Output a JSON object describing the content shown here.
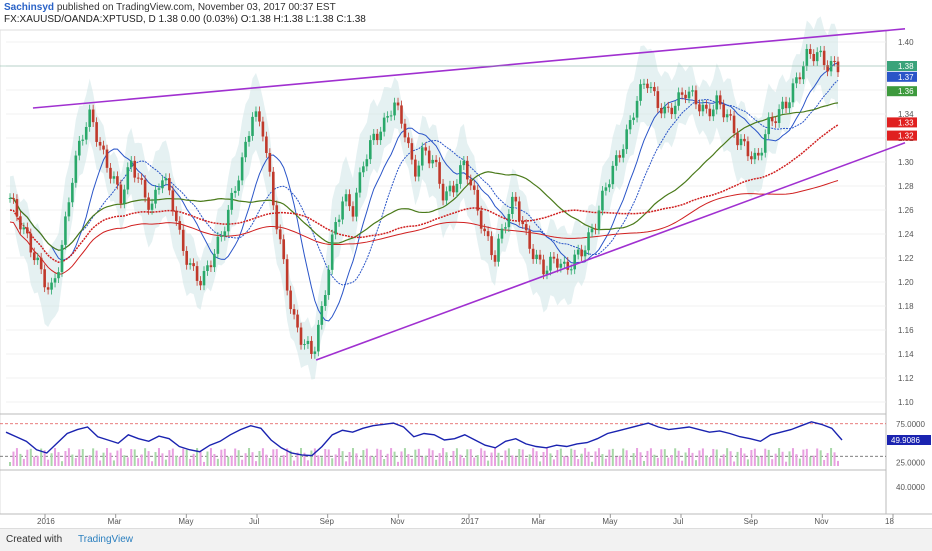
{
  "header": {
    "author": "Sachinsyd",
    "published": "published on TradingView.com, November 03, 2017 00:37 EST",
    "symbol_line": "FX:XAUUSD/OANDA:XPTUSD, D  1.38 0.00 (0.03%) O:1.38 H:1.38 L:1.38 C:1.38"
  },
  "footer": {
    "created_with": "Created with",
    "brand": "TradingView"
  },
  "colors": {
    "trendline": "#a030d0",
    "candle_up": "#2aa86a",
    "candle_down": "#c0392b",
    "ma_blue": "#2a55c8",
    "ma_green": "#4a7a1a",
    "ma_red": "#d02020",
    "band_fill": "#cfe6e8",
    "oscillator": "#1a23b0",
    "hist_pink": "#e8a0e0",
    "hist_green": "#a8d8a8"
  },
  "chart_data": {
    "type": "candlestick",
    "price_axis": {
      "ylim": [
        1.09,
        1.41
      ],
      "ticks": [
        "1.40",
        "1.38",
        "1.36",
        "1.34",
        "1.32",
        "1.30",
        "1.28",
        "1.26",
        "1.24",
        "1.22",
        "1.20",
        "1.18",
        "1.16",
        "1.14",
        "1.12",
        "1.10"
      ]
    },
    "x_ticks": [
      "2016",
      "Mar",
      "May",
      "Jul",
      "Sep",
      "Nov",
      "2017",
      "Mar",
      "May",
      "Jul",
      "Sep",
      "Nov",
      "18"
    ],
    "price_badges": [
      {
        "text": "1.38",
        "color": "#3aa37a",
        "value": 1.38
      },
      {
        "text": "1.37",
        "color": "#2a55c8",
        "value": 1.371
      },
      {
        "text": "1.36",
        "color": "#3d9a3d",
        "value": 1.359
      },
      {
        "text": "1.33",
        "color": "#e02020",
        "value": 1.333
      },
      {
        "text": "1.32",
        "color": "#e02020",
        "value": 1.322
      }
    ],
    "upper_trendline": [
      {
        "x": 0.03,
        "y": 1.345
      },
      {
        "x": 1.0,
        "y": 1.411
      }
    ],
    "lower_trendline": [
      {
        "x": 0.345,
        "y": 1.135
      },
      {
        "x": 1.0,
        "y": 1.316
      }
    ],
    "close_series": [
      1.27,
      1.25,
      1.23,
      1.21,
      1.19,
      1.22,
      1.28,
      1.32,
      1.34,
      1.31,
      1.29,
      1.27,
      1.3,
      1.28,
      1.26,
      1.29,
      1.27,
      1.23,
      1.21,
      1.2,
      1.22,
      1.24,
      1.27,
      1.3,
      1.34,
      1.33,
      1.27,
      1.22,
      1.17,
      1.15,
      1.14,
      1.18,
      1.24,
      1.27,
      1.26,
      1.3,
      1.32,
      1.33,
      1.35,
      1.33,
      1.29,
      1.31,
      1.3,
      1.27,
      1.28,
      1.3,
      1.27,
      1.24,
      1.22,
      1.25,
      1.27,
      1.24,
      1.22,
      1.21,
      1.22,
      1.21,
      1.22,
      1.23,
      1.25,
      1.28,
      1.3,
      1.32,
      1.35,
      1.37,
      1.35,
      1.34,
      1.35,
      1.36,
      1.35,
      1.34,
      1.35,
      1.34,
      1.32,
      1.31,
      1.3,
      1.33,
      1.34,
      1.35,
      1.37,
      1.39,
      1.39,
      1.38,
      1.38
    ],
    "oscillator": {
      "value_label": "49.9086",
      "ticks": [
        "75.0000",
        "25.0000",
        "40.0000"
      ],
      "levels": [
        75,
        25
      ],
      "series": [
        62,
        55,
        48,
        35,
        30,
        45,
        60,
        66,
        70,
        55,
        50,
        45,
        58,
        52,
        48,
        56,
        52,
        40,
        35,
        32,
        42,
        48,
        58,
        66,
        72,
        68,
        50,
        38,
        30,
        27,
        26,
        40,
        58,
        65,
        62,
        68,
        72,
        74,
        76,
        70,
        55,
        60,
        58,
        50,
        52,
        58,
        50,
        42,
        38,
        48,
        52,
        44,
        40,
        38,
        42,
        40,
        44,
        46,
        52,
        60,
        64,
        68,
        72,
        76,
        70,
        66,
        68,
        70,
        66,
        62,
        64,
        60,
        55,
        52,
        48,
        58,
        62,
        66,
        72,
        78,
        74,
        68,
        50
      ]
    }
  }
}
